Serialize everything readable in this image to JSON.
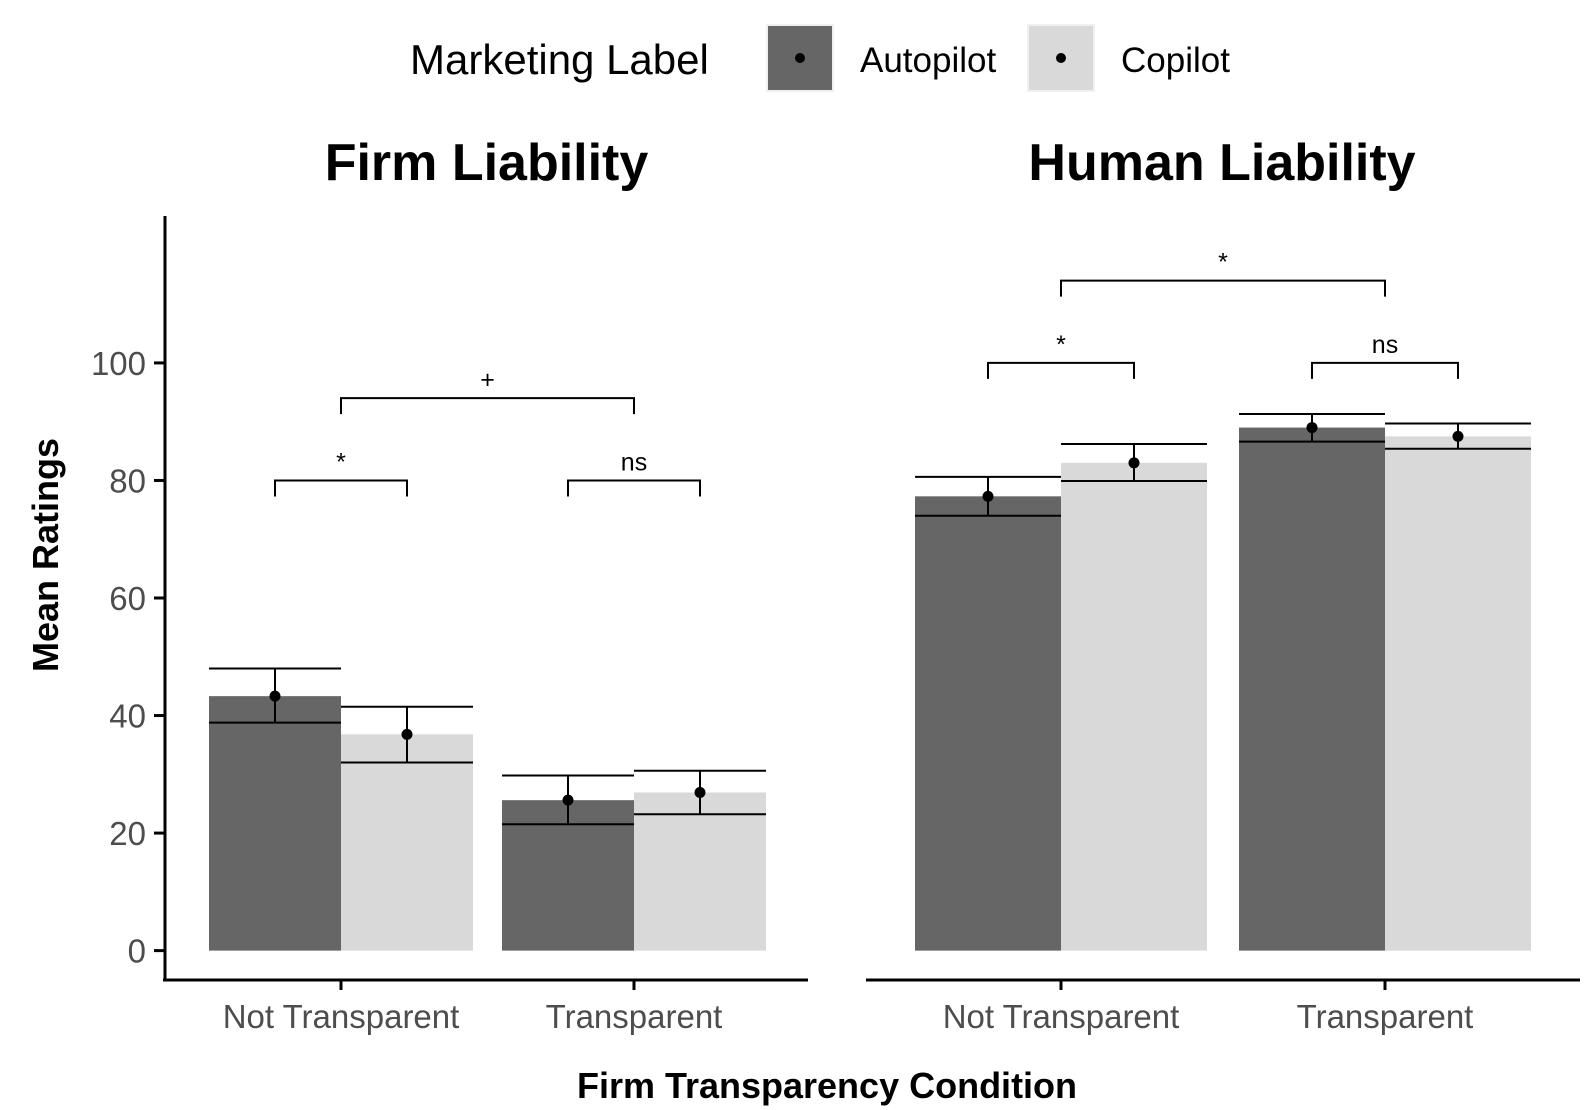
{
  "chart_data": {
    "type": "bar",
    "legend": {
      "title": "Marketing Label",
      "placement": "top",
      "entries": [
        {
          "name": "Autopilot",
          "color": "#666666"
        },
        {
          "name": "Copilot",
          "color": "#d9d9d9"
        }
      ]
    },
    "xlabel": "Firm Transparency Condition",
    "ylabel": "Mean Ratings",
    "ylim": [
      -5,
      125
    ],
    "yticks": [
      0,
      20,
      40,
      60,
      80,
      100
    ],
    "categories": [
      "Not Transparent",
      "Transparent"
    ],
    "grid": false,
    "panels": [
      {
        "title": "Firm Liability",
        "series": [
          {
            "name": "Autopilot",
            "values": [
              43.3,
              25.6
            ],
            "ci_low": [
              38.8,
              21.5
            ],
            "ci_high": [
              48.0,
              29.8
            ]
          },
          {
            "name": "Copilot",
            "values": [
              36.8,
              26.9
            ],
            "ci_low": [
              32.0,
              23.2
            ],
            "ci_high": [
              41.5,
              30.6
            ]
          }
        ],
        "comparisons": [
          {
            "label": "*",
            "from": "Not Transparent / Autopilot",
            "to": "Not Transparent / Copilot",
            "y": 80
          },
          {
            "label": "ns",
            "from": "Transparent / Autopilot",
            "to": "Transparent / Copilot",
            "y": 80
          },
          {
            "label": "+",
            "from": "Not Transparent",
            "to": "Transparent",
            "y": 94
          }
        ]
      },
      {
        "title": "Human Liability",
        "series": [
          {
            "name": "Autopilot",
            "values": [
              77.3,
              89.0
            ],
            "ci_low": [
              74.0,
              86.6
            ],
            "ci_high": [
              80.6,
              91.3
            ]
          },
          {
            "name": "Copilot",
            "values": [
              83.0,
              87.5
            ],
            "ci_low": [
              79.9,
              85.4
            ],
            "ci_high": [
              86.2,
              89.7
            ]
          }
        ],
        "comparisons": [
          {
            "label": "*",
            "from": "Not Transparent / Autopilot",
            "to": "Not Transparent / Copilot",
            "y": 100
          },
          {
            "label": "ns",
            "from": "Transparent / Autopilot",
            "to": "Transparent / Copilot",
            "y": 100
          },
          {
            "label": "*",
            "from": "Not Transparent",
            "to": "Transparent",
            "y": 114
          }
        ]
      }
    ]
  }
}
